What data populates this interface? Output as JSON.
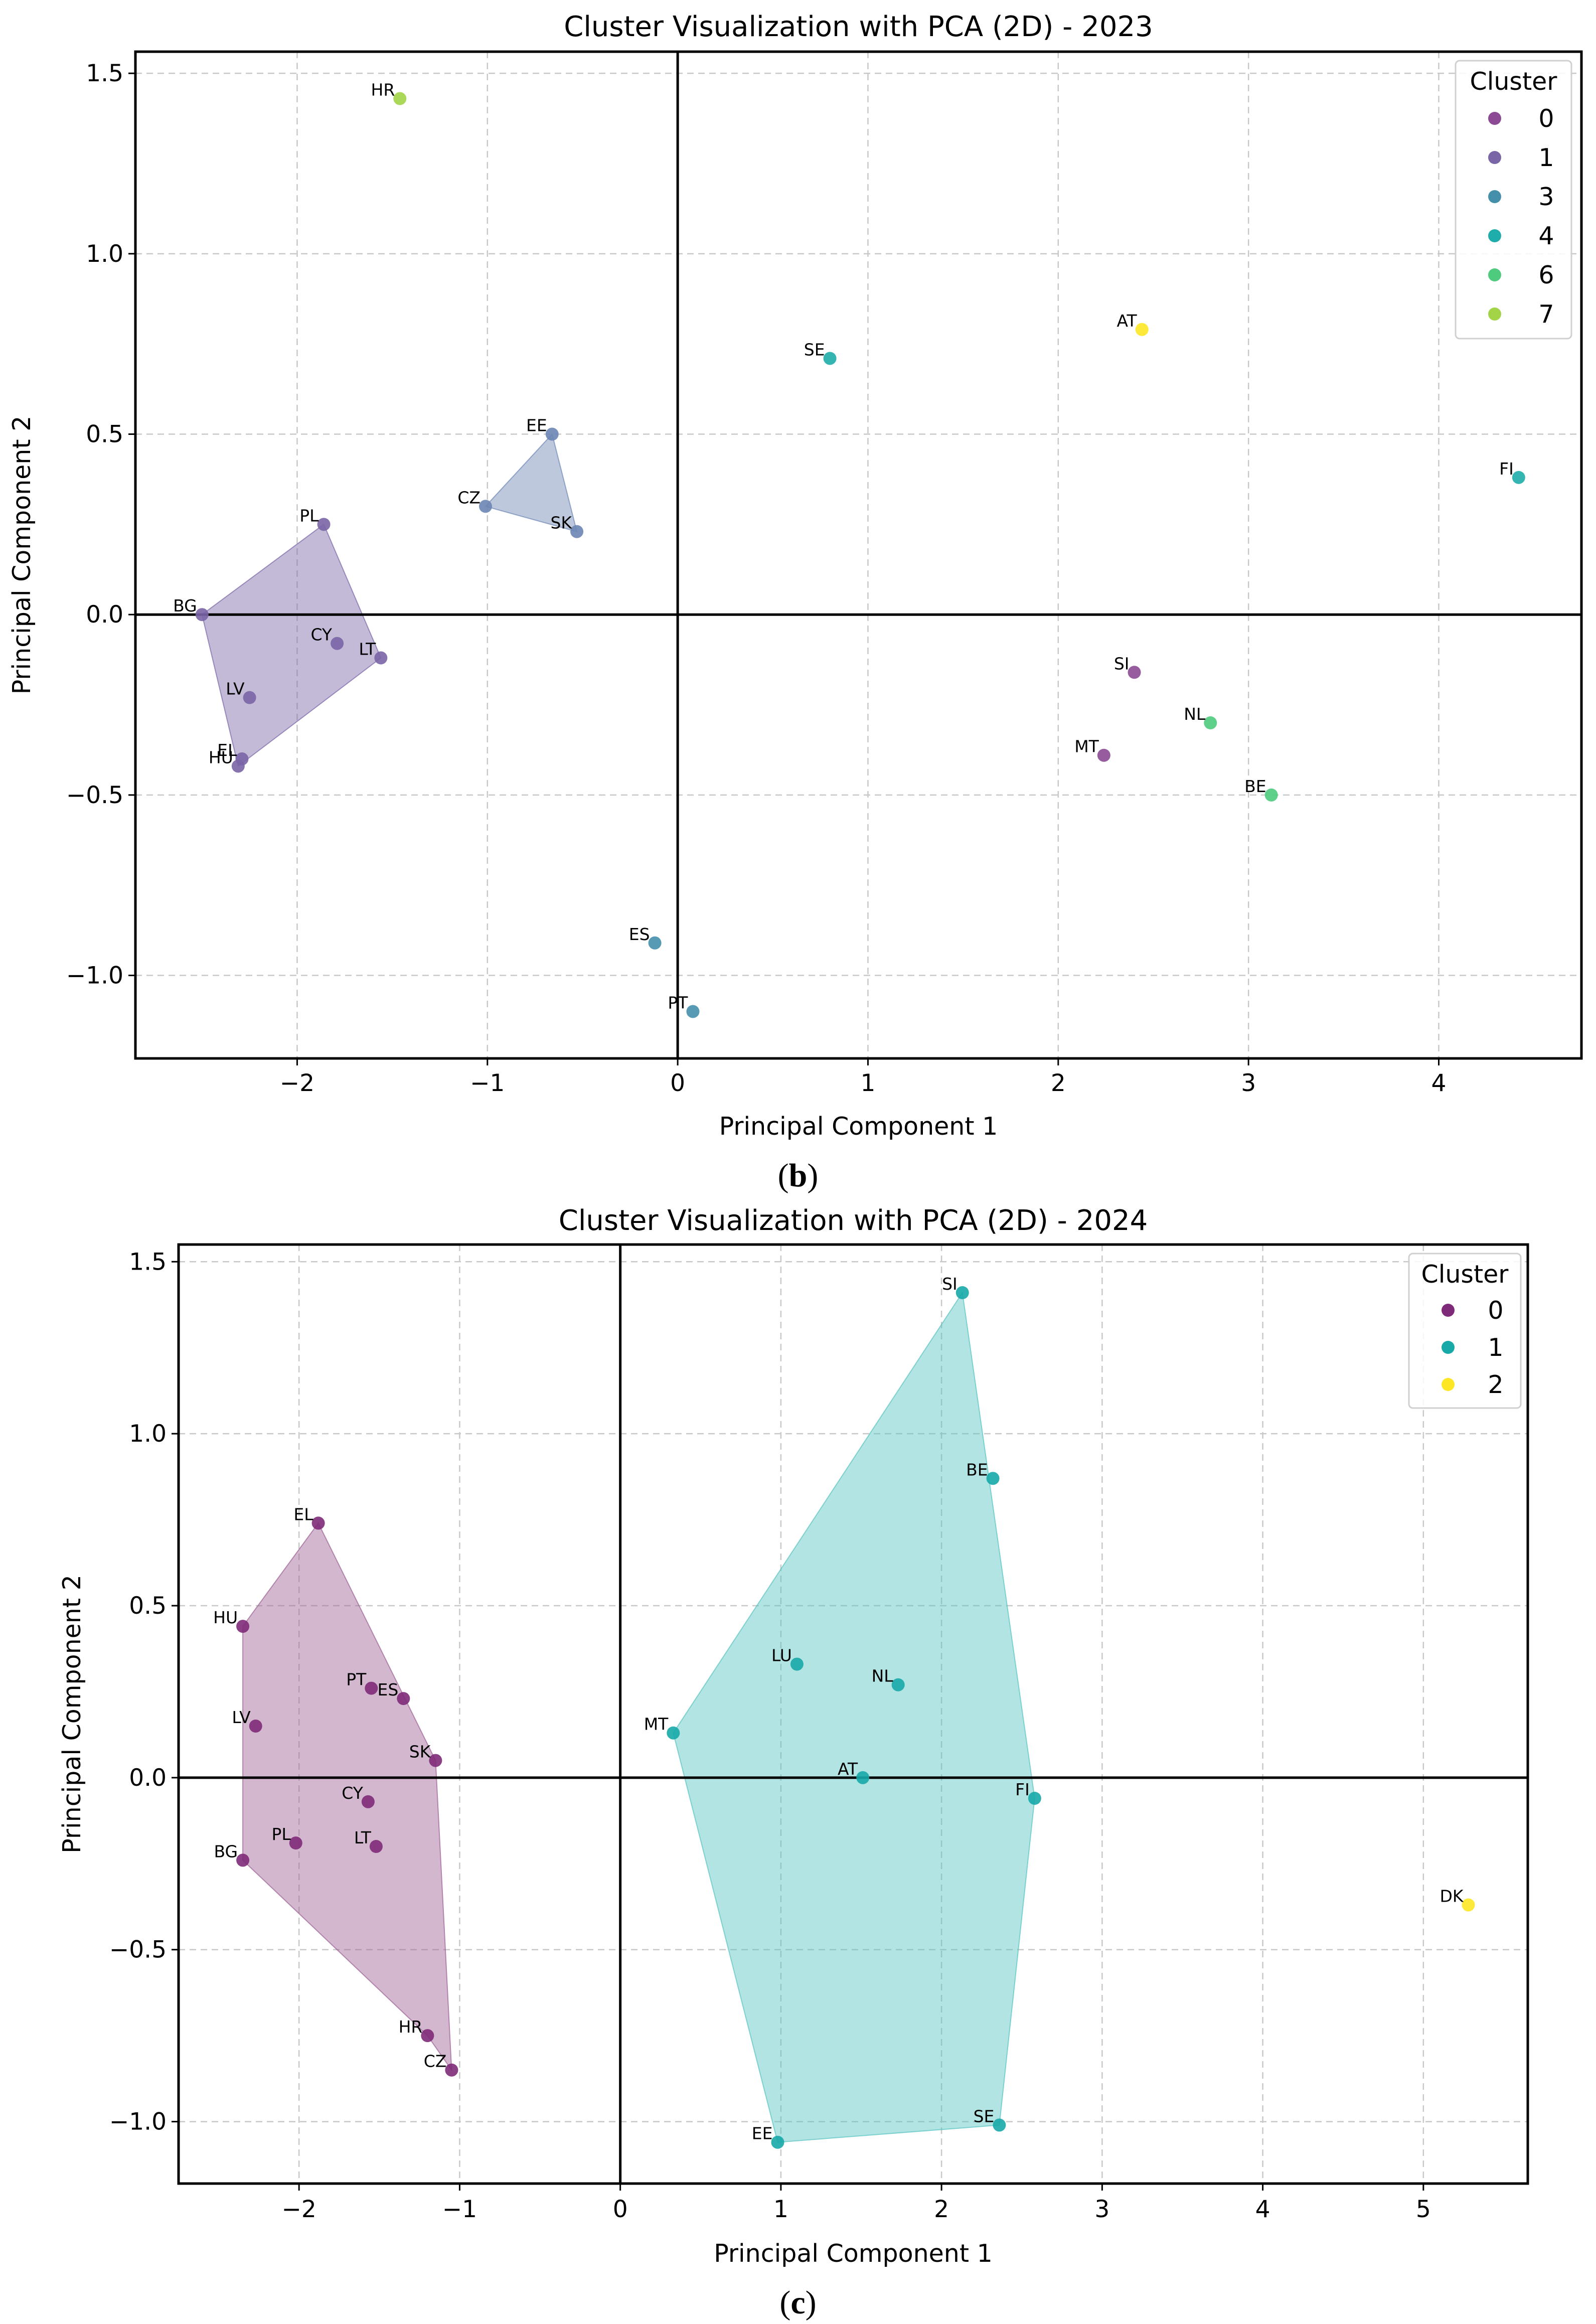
{
  "chart_data": [
    {
      "type": "scatter",
      "title": "Cluster Visualization with PCA (2D) - 2023",
      "xlabel": "Principal Component 1",
      "ylabel": "Principal Component 2",
      "caption_letter": "b",
      "xlim": [
        -2.85,
        4.75
      ],
      "ylim": [
        -1.23,
        1.56
      ],
      "xticks": [
        -2,
        -1,
        0,
        1,
        2,
        3,
        4
      ],
      "yticks": [
        -1.0,
        -0.5,
        0.0,
        0.5,
        1.0,
        1.5
      ],
      "grid": true,
      "legend": {
        "title": "Cluster",
        "placement": "top-right",
        "entries": [
          {
            "label": "0",
            "color": "#8b4a93"
          },
          {
            "label": "1",
            "color": "#7a65a6"
          },
          {
            "label": "3",
            "color": "#4490ab"
          },
          {
            "label": "4",
            "color": "#1eadaa"
          },
          {
            "label": "6",
            "color": "#4ecb7c"
          },
          {
            "label": "7",
            "color": "#a3d448"
          }
        ]
      },
      "hulls": [
        {
          "cluster": "1",
          "color": "#7a65a6",
          "points": [
            "PL",
            "LT",
            "HU",
            "BG"
          ]
        },
        {
          "cluster": "3",
          "color": "#6c86b4",
          "points": [
            "EE",
            "SK",
            "CZ"
          ]
        }
      ],
      "points": [
        {
          "label": "HR",
          "x": -1.46,
          "y": 1.43,
          "color": "#a3d448"
        },
        {
          "label": "EE",
          "x": -0.66,
          "y": 0.5,
          "color": "#6c86b4"
        },
        {
          "label": "CZ",
          "x": -1.01,
          "y": 0.3,
          "color": "#6c86b4"
        },
        {
          "label": "SK",
          "x": -0.53,
          "y": 0.23,
          "color": "#6c86b4"
        },
        {
          "label": "PL",
          "x": -1.86,
          "y": 0.25,
          "color": "#7a65a6"
        },
        {
          "label": "BG",
          "x": -2.5,
          "y": 0.0,
          "color": "#7a65a6"
        },
        {
          "label": "CY",
          "x": -1.79,
          "y": -0.08,
          "color": "#7a65a6"
        },
        {
          "label": "LT",
          "x": -1.56,
          "y": -0.12,
          "color": "#7a65a6"
        },
        {
          "label": "LV",
          "x": -2.25,
          "y": -0.23,
          "color": "#7a65a6"
        },
        {
          "label": "EL",
          "x": -2.29,
          "y": -0.4,
          "color": "#7a65a6"
        },
        {
          "label": "HU",
          "x": -2.31,
          "y": -0.42,
          "color": "#7a65a6"
        },
        {
          "label": "ES",
          "x": -0.12,
          "y": -0.91,
          "color": "#4490ab"
        },
        {
          "label": "PT",
          "x": 0.08,
          "y": -1.1,
          "color": "#4490ab"
        },
        {
          "label": "SE",
          "x": 0.8,
          "y": 0.71,
          "color": "#1eadaa"
        },
        {
          "label": "AT",
          "x": 2.44,
          "y": 0.79,
          "color": "#fde725"
        },
        {
          "label": "FI",
          "x": 4.42,
          "y": 0.38,
          "color": "#1eadaa"
        },
        {
          "label": "SI",
          "x": 2.4,
          "y": -0.16,
          "color": "#8b4a93"
        },
        {
          "label": "NL",
          "x": 2.8,
          "y": -0.3,
          "color": "#4ecb7c"
        },
        {
          "label": "MT",
          "x": 2.24,
          "y": -0.39,
          "color": "#8b4a93"
        },
        {
          "label": "BE",
          "x": 3.12,
          "y": -0.5,
          "color": "#4ecb7c"
        }
      ]
    },
    {
      "type": "scatter",
      "title": "Cluster Visualization with PCA (2D) - 2024",
      "xlabel": "Principal Component 1",
      "ylabel": "Principal Component 2",
      "caption_letter": "c",
      "xlim": [
        -2.75,
        5.65
      ],
      "ylim": [
        -1.18,
        1.55
      ],
      "xticks": [
        -2,
        -1,
        0,
        1,
        2,
        3,
        4,
        5
      ],
      "yticks": [
        -1.0,
        -0.5,
        0.0,
        0.5,
        1.0,
        1.5
      ],
      "grid": true,
      "legend": {
        "title": "Cluster",
        "placement": "top-right",
        "entries": [
          {
            "label": "0",
            "color": "#7e2a78"
          },
          {
            "label": "1",
            "color": "#17a9a8"
          },
          {
            "label": "2",
            "color": "#fde725"
          }
        ]
      },
      "hulls": [
        {
          "cluster": "0",
          "color": "#9c5f94",
          "points": [
            "EL",
            "SK",
            "CZ",
            "HR",
            "BG",
            "HU"
          ]
        },
        {
          "cluster": "1",
          "color": "#55c3c0",
          "points": [
            "SI",
            "FI",
            "SE",
            "EE",
            "MT"
          ]
        }
      ],
      "points": [
        {
          "label": "EL",
          "x": -1.88,
          "y": 0.74,
          "color": "#7e2a78"
        },
        {
          "label": "HU",
          "x": -2.35,
          "y": 0.44,
          "color": "#7e2a78"
        },
        {
          "label": "PT",
          "x": -1.55,
          "y": 0.26,
          "color": "#7e2a78"
        },
        {
          "label": "ES",
          "x": -1.35,
          "y": 0.23,
          "color": "#7e2a78"
        },
        {
          "label": "LV",
          "x": -2.27,
          "y": 0.15,
          "color": "#7e2a78"
        },
        {
          "label": "SK",
          "x": -1.15,
          "y": 0.05,
          "color": "#7e2a78"
        },
        {
          "label": "CY",
          "x": -1.57,
          "y": -0.07,
          "color": "#7e2a78"
        },
        {
          "label": "PL",
          "x": -2.02,
          "y": -0.19,
          "color": "#7e2a78"
        },
        {
          "label": "LT",
          "x": -1.52,
          "y": -0.2,
          "color": "#7e2a78"
        },
        {
          "label": "BG",
          "x": -2.35,
          "y": -0.24,
          "color": "#7e2a78"
        },
        {
          "label": "HR",
          "x": -1.2,
          "y": -0.75,
          "color": "#7e2a78"
        },
        {
          "label": "CZ",
          "x": -1.05,
          "y": -0.85,
          "color": "#7e2a78"
        },
        {
          "label": "SI",
          "x": 2.13,
          "y": 1.41,
          "color": "#17a9a8"
        },
        {
          "label": "BE",
          "x": 2.32,
          "y": 0.87,
          "color": "#17a9a8"
        },
        {
          "label": "LU",
          "x": 1.1,
          "y": 0.33,
          "color": "#17a9a8"
        },
        {
          "label": "NL",
          "x": 1.73,
          "y": 0.27,
          "color": "#17a9a8"
        },
        {
          "label": "MT",
          "x": 0.33,
          "y": 0.13,
          "color": "#17a9a8"
        },
        {
          "label": "AT",
          "x": 1.51,
          "y": 0.0,
          "color": "#17a9a8"
        },
        {
          "label": "FI",
          "x": 2.58,
          "y": -0.06,
          "color": "#17a9a8"
        },
        {
          "label": "SE",
          "x": 2.36,
          "y": -1.01,
          "color": "#17a9a8"
        },
        {
          "label": "EE",
          "x": 0.98,
          "y": -1.06,
          "color": "#17a9a8"
        },
        {
          "label": "DK",
          "x": 5.28,
          "y": -0.37,
          "color": "#fde725"
        }
      ]
    }
  ]
}
